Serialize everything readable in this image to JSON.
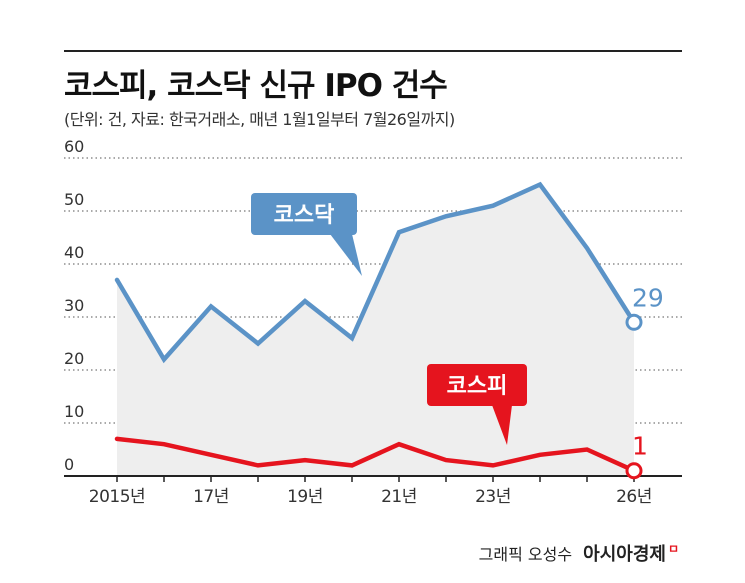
{
  "header": {
    "title": "코스피, 코스닥 신규 IPO 건수",
    "subtitle": "(단위: 건, 자료: 한국거래소, 매년 1월1일부터 7월26일까지)"
  },
  "credit": {
    "text": "그래픽 오성수",
    "brand": "아시아경제",
    "brand_mark": "ㅁ"
  },
  "chart_data": {
    "type": "line",
    "x": [
      2015,
      2016,
      2017,
      2018,
      2019,
      2020,
      2021,
      2022,
      2023,
      2024,
      2025,
      2026
    ],
    "series": [
      {
        "name": "코스닥",
        "color": "#5b93c7",
        "values": [
          37,
          22,
          32,
          25,
          33,
          26,
          46,
          49,
          51,
          55,
          43,
          29
        ],
        "end_label": "29",
        "area_fill": true
      },
      {
        "name": "코스피",
        "color": "#e5141e",
        "values": [
          7,
          6,
          4,
          2,
          3,
          2,
          6,
          3,
          2,
          4,
          5,
          1
        ],
        "end_label": "1"
      }
    ],
    "yticks": [
      "0",
      "10",
      "20",
      "30",
      "40",
      "50",
      "60"
    ],
    "ylim": [
      0,
      60
    ],
    "xtick_labels": [
      {
        "x": 2015,
        "label": "2015년"
      },
      {
        "x": 2017,
        "label": "17년"
      },
      {
        "x": 2019,
        "label": "19년"
      },
      {
        "x": 2021,
        "label": "21년"
      },
      {
        "x": 2023,
        "label": "23년"
      },
      {
        "x": 2026,
        "label": "26년"
      }
    ],
    "grid": "dotted horizontal",
    "legend": "callout labels"
  }
}
